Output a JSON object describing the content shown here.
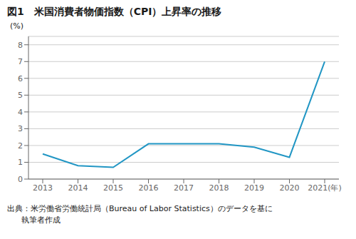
{
  "chart_data": {
    "type": "line",
    "title": "図1　米国消費者物価指数（CPI）上昇率の推移",
    "y_label": "(%)",
    "categories": [
      "2013",
      "2014",
      "2015",
      "2016",
      "2017",
      "2018",
      "2019",
      "2020",
      "2021(年)"
    ],
    "values": [
      1.5,
      0.8,
      0.7,
      2.1,
      2.1,
      2.1,
      1.9,
      1.3,
      7.0
    ],
    "color": "#2196c4",
    "ylim": [
      0,
      8.5
    ],
    "yticks": [
      0,
      1,
      2,
      3,
      4,
      5,
      6,
      7,
      8
    ],
    "grid": true,
    "annotations": [
      "出典：米労働省労働統計局（Bureau of Labor Statistics）のデータを基に",
      "執筆者作成"
    ]
  }
}
